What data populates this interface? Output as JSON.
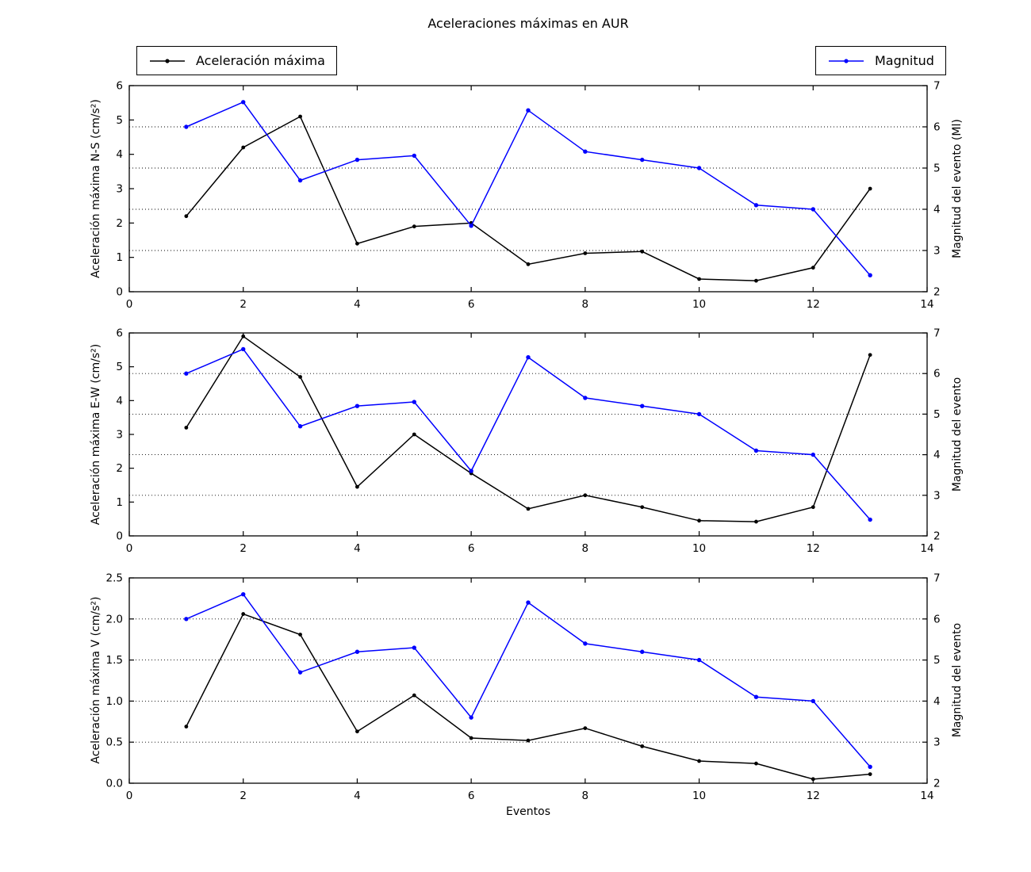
{
  "title": "Aceleraciones máximas en AUR",
  "xlabel": "Eventos",
  "legends": [
    {
      "label": "Aceleración máxima",
      "color": "#000000"
    },
    {
      "label": "Magnitud",
      "color": "#0000ff"
    }
  ],
  "chart_data": [
    {
      "type": "line",
      "x": [
        1,
        2,
        3,
        4,
        5,
        6,
        7,
        8,
        9,
        10,
        11,
        12,
        13
      ],
      "xlim": [
        0,
        14
      ],
      "xticks": [
        0,
        2,
        4,
        6,
        8,
        10,
        12,
        14
      ],
      "xtick_labels": [
        "0",
        "2",
        "4",
        "6",
        "8",
        "10",
        "12",
        "14"
      ],
      "ylabel_left": "Aceleración máxima N-S (cm/s²)",
      "ylim_left": [
        0,
        6
      ],
      "yticks_left": [
        0,
        1,
        2,
        3,
        4,
        5,
        6
      ],
      "ytick_labels_left": [
        "0",
        "1",
        "2",
        "3",
        "4",
        "5",
        "6"
      ],
      "ylabel_right": "Magnitud del evento (Ml)",
      "ylim_right": [
        2,
        7
      ],
      "yticks_right": [
        2,
        3,
        4,
        5,
        6,
        7
      ],
      "ytick_labels_right": [
        "2",
        "3",
        "4",
        "5",
        "6",
        "7"
      ],
      "gridlines_right_values": [
        3,
        4,
        5,
        6
      ],
      "grid_style": "dotted",
      "series": [
        {
          "name": "Aceleración máxima",
          "axis": "left",
          "color": "#000000",
          "marker": "circle",
          "values": [
            2.2,
            4.2,
            5.1,
            1.4,
            1.9,
            2.0,
            0.8,
            1.12,
            1.17,
            0.37,
            0.32,
            0.7,
            3.0
          ]
        },
        {
          "name": "Magnitud",
          "axis": "right",
          "color": "#0000ff",
          "marker": "circle",
          "values": [
            6.0,
            6.6,
            4.7,
            5.2,
            5.3,
            3.6,
            6.4,
            5.4,
            5.2,
            5.0,
            4.1,
            4.0,
            2.4
          ]
        }
      ]
    },
    {
      "type": "line",
      "x": [
        1,
        2,
        3,
        4,
        5,
        6,
        7,
        8,
        9,
        10,
        11,
        12,
        13
      ],
      "xlim": [
        0,
        14
      ],
      "xticks": [
        0,
        2,
        4,
        6,
        8,
        10,
        12,
        14
      ],
      "xtick_labels": [
        "0",
        "2",
        "4",
        "6",
        "8",
        "10",
        "12",
        "14"
      ],
      "ylabel_left": "Aceleración máxima E-W (cm/s²)",
      "ylim_left": [
        0,
        6
      ],
      "yticks_left": [
        0,
        1,
        2,
        3,
        4,
        5,
        6
      ],
      "ytick_labels_left": [
        "0",
        "1",
        "2",
        "3",
        "4",
        "5",
        "6"
      ],
      "ylabel_right": "Magnitud del evento",
      "ylim_right": [
        2,
        7
      ],
      "yticks_right": [
        2,
        3,
        4,
        5,
        6,
        7
      ],
      "ytick_labels_right": [
        "2",
        "3",
        "4",
        "5",
        "6",
        "7"
      ],
      "gridlines_right_values": [
        3,
        4,
        5,
        6
      ],
      "grid_style": "dotted",
      "series": [
        {
          "name": "Aceleración máxima",
          "axis": "left",
          "color": "#000000",
          "marker": "circle",
          "values": [
            3.2,
            5.9,
            4.7,
            1.45,
            3.0,
            1.85,
            0.8,
            1.2,
            0.85,
            0.45,
            0.42,
            0.85,
            5.35
          ]
        },
        {
          "name": "Magnitud",
          "axis": "right",
          "color": "#0000ff",
          "marker": "circle",
          "values": [
            6.0,
            6.6,
            4.7,
            5.2,
            5.3,
            3.6,
            6.4,
            5.4,
            5.2,
            5.0,
            4.1,
            4.0,
            2.4
          ]
        }
      ]
    },
    {
      "type": "line",
      "x": [
        1,
        2,
        3,
        4,
        5,
        6,
        7,
        8,
        9,
        10,
        11,
        12,
        13
      ],
      "xlim": [
        0,
        14
      ],
      "xticks": [
        0,
        2,
        4,
        6,
        8,
        10,
        12,
        14
      ],
      "xtick_labels": [
        "0",
        "2",
        "4",
        "6",
        "8",
        "10",
        "12",
        "14"
      ],
      "ylabel_left": "Aceleración máxima V (cm/s²)",
      "ylim_left": [
        0,
        2.5
      ],
      "yticks_left": [
        0,
        0.5,
        1,
        1.5,
        2,
        2.5
      ],
      "ytick_labels_left": [
        "0.0",
        "0.5",
        "1.0",
        "1.5",
        "2.0",
        "2.5"
      ],
      "ylabel_right": "Magnitud del evento",
      "ylim_right": [
        2,
        7
      ],
      "yticks_right": [
        2,
        3,
        4,
        5,
        6,
        7
      ],
      "ytick_labels_right": [
        "2",
        "3",
        "4",
        "5",
        "6",
        "7"
      ],
      "gridlines_right_values": [
        3,
        4,
        5,
        6
      ],
      "grid_style": "dotted",
      "series": [
        {
          "name": "Aceleración máxima",
          "axis": "left",
          "color": "#000000",
          "marker": "circle",
          "values": [
            0.69,
            2.06,
            1.81,
            0.63,
            1.07,
            0.55,
            0.52,
            0.67,
            0.45,
            0.27,
            0.24,
            0.05,
            0.11
          ]
        },
        {
          "name": "Magnitud",
          "axis": "right",
          "color": "#0000ff",
          "marker": "circle",
          "values": [
            6.0,
            6.6,
            4.7,
            5.2,
            5.3,
            3.6,
            6.4,
            5.4,
            5.2,
            5.0,
            4.1,
            4.0,
            2.4
          ]
        }
      ]
    }
  ]
}
